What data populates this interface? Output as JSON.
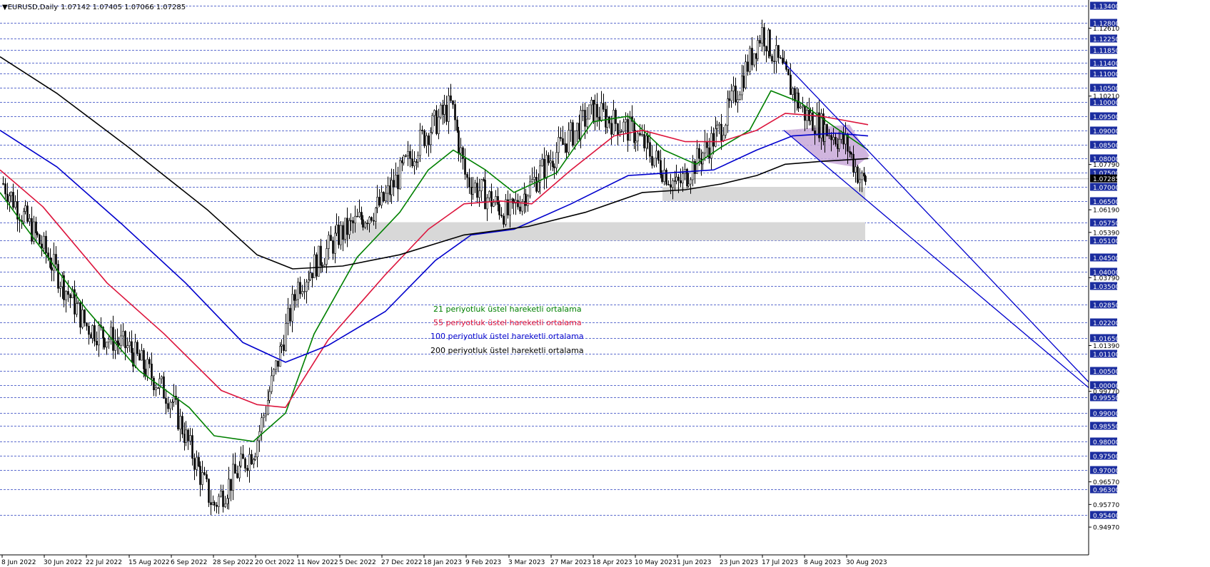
{
  "header": {
    "symbol": "EURUSD,Daily",
    "ohlc": "1.07142 1.07405 1.07066 1.07285"
  },
  "chart_data": {
    "type": "line",
    "plot": "candlestick with moving averages",
    "symbol": "EURUSD",
    "timeframe": "Daily",
    "ylim": [
      0.946,
      1.14
    ],
    "x_tick_labels": [
      "8 Jun 2022",
      "30 Jun 2022",
      "22 Jul 2022",
      "15 Aug 2022",
      "6 Sep 2022",
      "28 Sep 2022",
      "20 Oct 2022",
      "11 Nov 2022",
      "5 Dec 2022",
      "27 Dec 2022",
      "18 Jan 2023",
      "9 Feb 2023",
      "3 Mar 2023",
      "27 Mar 2023",
      "18 Apr 2023",
      "10 May 2023",
      "1 Jun 2023",
      "23 Jun 2023",
      "17 Jul 2023",
      "8 Aug 2023",
      "30 Aug 2023"
    ],
    "grid_levels": [
      1.134,
      1.128,
      1.1225,
      1.1185,
      1.114,
      1.11,
      1.105,
      1.1,
      1.095,
      1.09,
      1.085,
      1.08,
      1.075,
      1.07,
      1.065,
      1.0575,
      1.051,
      1.045,
      1.04,
      1.035,
      1.0285,
      1.022,
      1.0165,
      1.011,
      1.005,
      1.0,
      0.9955,
      0.99,
      0.9855,
      0.98,
      0.975,
      0.97,
      0.963,
      0.954
    ],
    "grid_labels": [
      "1.13400",
      "1.12800",
      "1.12250",
      "1.11850",
      "1.11400",
      "1.11000",
      "1.10500",
      "1.10000",
      "1.09500",
      "1.09000",
      "1.08500",
      "1.08000",
      "1.07500",
      "1.07000",
      "1.06500",
      "1.05750",
      "1.05100",
      "1.04500",
      "1.04000",
      "1.03500",
      "1.02850",
      "1.02200",
      "1.01650",
      "1.01100",
      "1.00500",
      "1.00000",
      "0.99550",
      "0.99000",
      "0.98550",
      "0.98000",
      "0.97500",
      "0.97000",
      "0.96300",
      "0.95400"
    ],
    "scale_labels": [
      {
        "value": 1.1261,
        "text": "1.12610"
      },
      {
        "value": 1.1021,
        "text": "1.10210"
      },
      {
        "value": 1.0779,
        "text": "1.07790"
      },
      {
        "value": 1.0619,
        "text": "1.06190"
      },
      {
        "value": 1.0539,
        "text": "1.05390"
      },
      {
        "value": 1.0379,
        "text": "1.03790"
      },
      {
        "value": 1.0139,
        "text": "1.01390"
      },
      {
        "value": 0.9977,
        "text": "0.99770"
      },
      {
        "value": 0.9657,
        "text": "0.96570"
      },
      {
        "value": 0.9577,
        "text": "0.95770"
      },
      {
        "value": 0.9497,
        "text": "0.94970"
      }
    ],
    "current_price": {
      "value": 1.07285,
      "text": "1.07285"
    },
    "key_points": [
      {
        "date": "8 Jun 2022",
        "close": 1.072
      },
      {
        "date": "30 Jun 2022",
        "close": 1.048
      },
      {
        "date": "22 Jul 2022",
        "close": 1.021
      },
      {
        "date": "15 Aug 2022",
        "close": 1.013
      },
      {
        "date": "6 Sep 2022",
        "close": 0.995
      },
      {
        "date": "28 Sep 2022",
        "close": 0.957
      },
      {
        "date": "20 Oct 2022",
        "close": 0.978
      },
      {
        "date": "11 Nov 2022",
        "close": 1.035
      },
      {
        "date": "5 Dec 2022",
        "close": 1.053
      },
      {
        "date": "27 Dec 2022",
        "close": 1.064
      },
      {
        "date": "18 Jan 2023",
        "close": 1.088
      },
      {
        "date": "2 Feb 2023",
        "close": 1.099
      },
      {
        "date": "9 Feb 2023",
        "close": 1.073
      },
      {
        "date": "3 Mar 2023",
        "close": 1.06
      },
      {
        "date": "27 Mar 2023",
        "close": 1.08
      },
      {
        "date": "18 Apr 2023",
        "close": 1.097
      },
      {
        "date": "10 May 2023",
        "close": 1.089
      },
      {
        "date": "1 Jun 2023",
        "close": 1.07
      },
      {
        "date": "23 Jun 2023",
        "close": 1.09
      },
      {
        "date": "17 Jul 2023",
        "close": 1.125
      },
      {
        "date": "8 Aug 2023",
        "close": 1.096
      },
      {
        "date": "30 Aug 2023",
        "close": 1.085
      },
      {
        "date": "7 Sep 2023",
        "close": 1.072
      },
      {
        "date": "11 Sep 2023",
        "close": 1.0728
      }
    ],
    "series": [
      {
        "name": "21 periyotluk üstel hareketli ortalama",
        "color": "#008000",
        "points": [
          [
            0,
            1.068
          ],
          [
            35,
            1.056
          ],
          [
            120,
            1.027
          ],
          [
            195,
            1.005
          ],
          [
            265,
            0.992
          ],
          [
            300,
            0.982
          ],
          [
            355,
            0.98
          ],
          [
            400,
            0.99
          ],
          [
            440,
            1.018
          ],
          [
            500,
            1.045
          ],
          [
            560,
            1.061
          ],
          [
            600,
            1.076
          ],
          [
            635,
            1.083
          ],
          [
            680,
            1.076
          ],
          [
            720,
            1.068
          ],
          [
            780,
            1.075
          ],
          [
            830,
            1.093
          ],
          [
            880,
            1.095
          ],
          [
            930,
            1.083
          ],
          [
            975,
            1.078
          ],
          [
            1010,
            1.084
          ],
          [
            1050,
            1.09
          ],
          [
            1080,
            1.104
          ],
          [
            1120,
            1.1
          ],
          [
            1170,
            1.091
          ],
          [
            1216,
            1.083
          ]
        ]
      },
      {
        "name": "55 periyotluk üstel hareketli ortalama",
        "color": "#dc143c",
        "points": [
          [
            0,
            1.076
          ],
          [
            60,
            1.063
          ],
          [
            150,
            1.036
          ],
          [
            230,
            1.018
          ],
          [
            310,
            0.998
          ],
          [
            360,
            0.993
          ],
          [
            400,
            0.992
          ],
          [
            460,
            1.016
          ],
          [
            540,
            1.039
          ],
          [
            600,
            1.055
          ],
          [
            650,
            1.064
          ],
          [
            700,
            1.065
          ],
          [
            745,
            1.064
          ],
          [
            800,
            1.076
          ],
          [
            860,
            1.088
          ],
          [
            900,
            1.09
          ],
          [
            960,
            1.086
          ],
          [
            1010,
            1.086
          ],
          [
            1060,
            1.09
          ],
          [
            1100,
            1.096
          ],
          [
            1150,
            1.095
          ],
          [
            1216,
            1.092
          ]
        ]
      },
      {
        "name": "100 periyotluk üstel hareketli ortalama",
        "color": "#0000cd",
        "points": [
          [
            0,
            1.09
          ],
          [
            80,
            1.077
          ],
          [
            170,
            1.057
          ],
          [
            260,
            1.036
          ],
          [
            340,
            1.015
          ],
          [
            400,
            1.008
          ],
          [
            460,
            1.014
          ],
          [
            540,
            1.026
          ],
          [
            610,
            1.044
          ],
          [
            660,
            1.053
          ],
          [
            720,
            1.055
          ],
          [
            800,
            1.064
          ],
          [
            880,
            1.074
          ],
          [
            940,
            1.075
          ],
          [
            1000,
            1.076
          ],
          [
            1060,
            1.083
          ],
          [
            1110,
            1.088
          ],
          [
            1170,
            1.089
          ],
          [
            1216,
            1.088
          ]
        ]
      },
      {
        "name": "200 periyotluk üstel hareketli ortalama",
        "color": "#000000",
        "points": [
          [
            0,
            1.116
          ],
          [
            80,
            1.103
          ],
          [
            180,
            1.084
          ],
          [
            290,
            1.062
          ],
          [
            360,
            1.046
          ],
          [
            410,
            1.041
          ],
          [
            480,
            1.042
          ],
          [
            560,
            1.046
          ],
          [
            650,
            1.053
          ],
          [
            740,
            1.056
          ],
          [
            820,
            1.061
          ],
          [
            900,
            1.068
          ],
          [
            960,
            1.069
          ],
          [
            1010,
            1.071
          ],
          [
            1060,
            1.074
          ],
          [
            1100,
            1.078
          ],
          [
            1150,
            1.079
          ],
          [
            1216,
            1.08
          ]
        ]
      }
    ],
    "channel": {
      "color": "#0000cd",
      "upper": [
        [
          1098,
          1.114
        ],
        [
          1525,
          1.001
        ]
      ],
      "lower": [
        [
          1098,
          1.09
        ],
        [
          1525,
          0.999
        ]
      ]
    },
    "zones": [
      {
        "from": 1.065,
        "to": 1.07,
        "x0": 928,
        "x1": 1212
      },
      {
        "from": 1.051,
        "to": 1.0575,
        "x0": 480,
        "x1": 1212
      },
      {
        "polygon": [
          [
            1098,
            1.09
          ],
          [
            1190,
            1.092
          ],
          [
            1218,
            1.081
          ],
          [
            1198,
            1.077
          ],
          [
            1150,
            1.079
          ]
        ],
        "color": "#c8a8d8"
      }
    ],
    "legend_placement": "center"
  },
  "colors": {
    "grid": "#2a3fbf",
    "axis_label_bg": "#1b2d9f",
    "current_price_bg": "#000000",
    "zone": "#d8d8d8",
    "candle": "#000000"
  }
}
